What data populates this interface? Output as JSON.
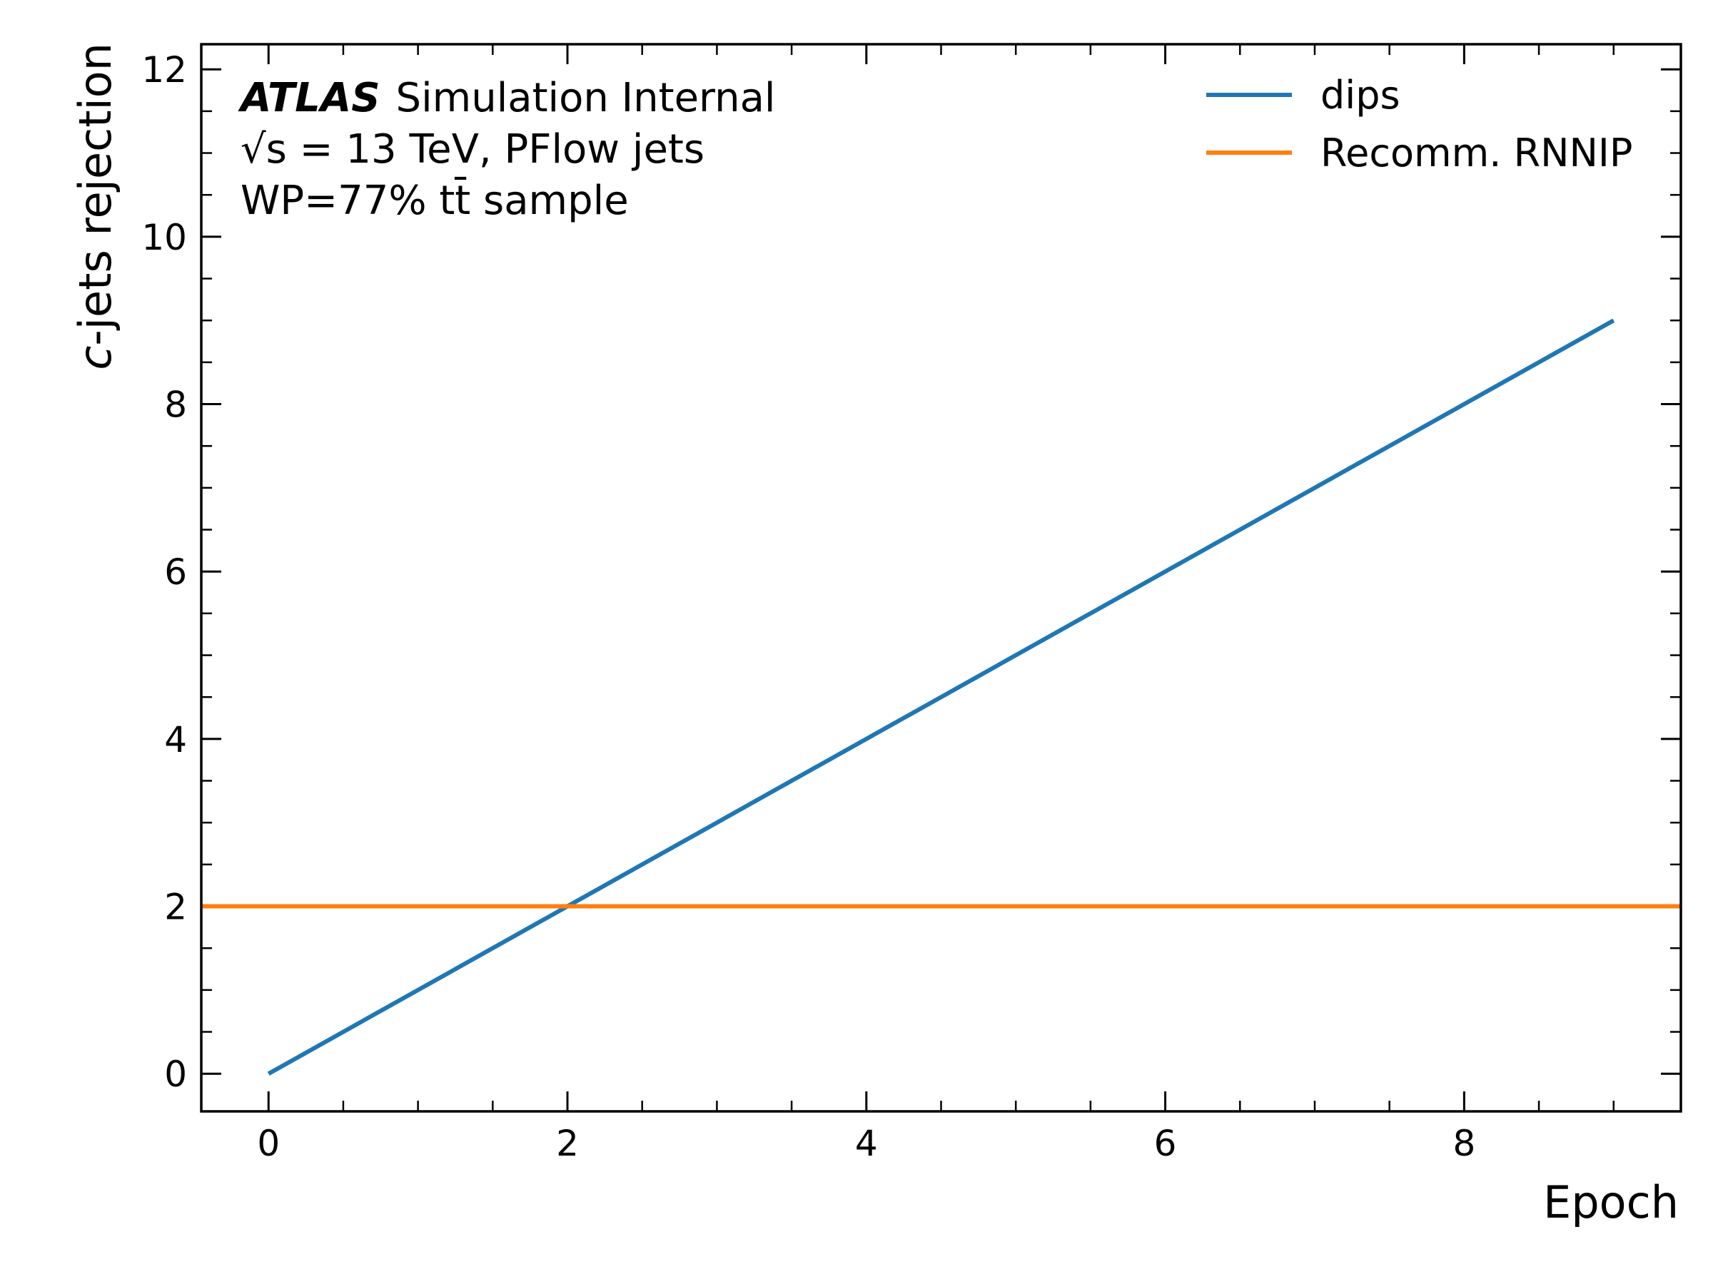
{
  "chart_data": {
    "type": "line",
    "x": [
      0,
      1,
      2,
      3,
      4,
      5,
      6,
      7,
      8,
      9
    ],
    "series": [
      {
        "name": "dips",
        "color": "#1f77b4",
        "values": [
          0,
          1,
          2,
          3,
          4,
          5,
          6,
          7,
          8,
          9
        ]
      },
      {
        "name": "Recomm. RNNIP",
        "color": "#ff7f0e",
        "style": "horizontal-line",
        "value": 2
      }
    ],
    "xlabel": "Epoch",
    "ylabel": "c-jets rejection",
    "xlim": [
      -0.45,
      9.45
    ],
    "ylim": [
      -0.45,
      12.3
    ],
    "xticks": [
      "0",
      "2",
      "4",
      "6",
      "8"
    ],
    "yticks": [
      "0",
      "2",
      "4",
      "6",
      "8",
      "10",
      "12"
    ],
    "grid": false,
    "legend_placement": "top-right",
    "annotation": {
      "experiment": "ATLAS",
      "label": "Simulation Internal",
      "energy": "√s = 13 TeV, PFlow jets",
      "sample": "WP=77% tt̄ sample"
    }
  }
}
